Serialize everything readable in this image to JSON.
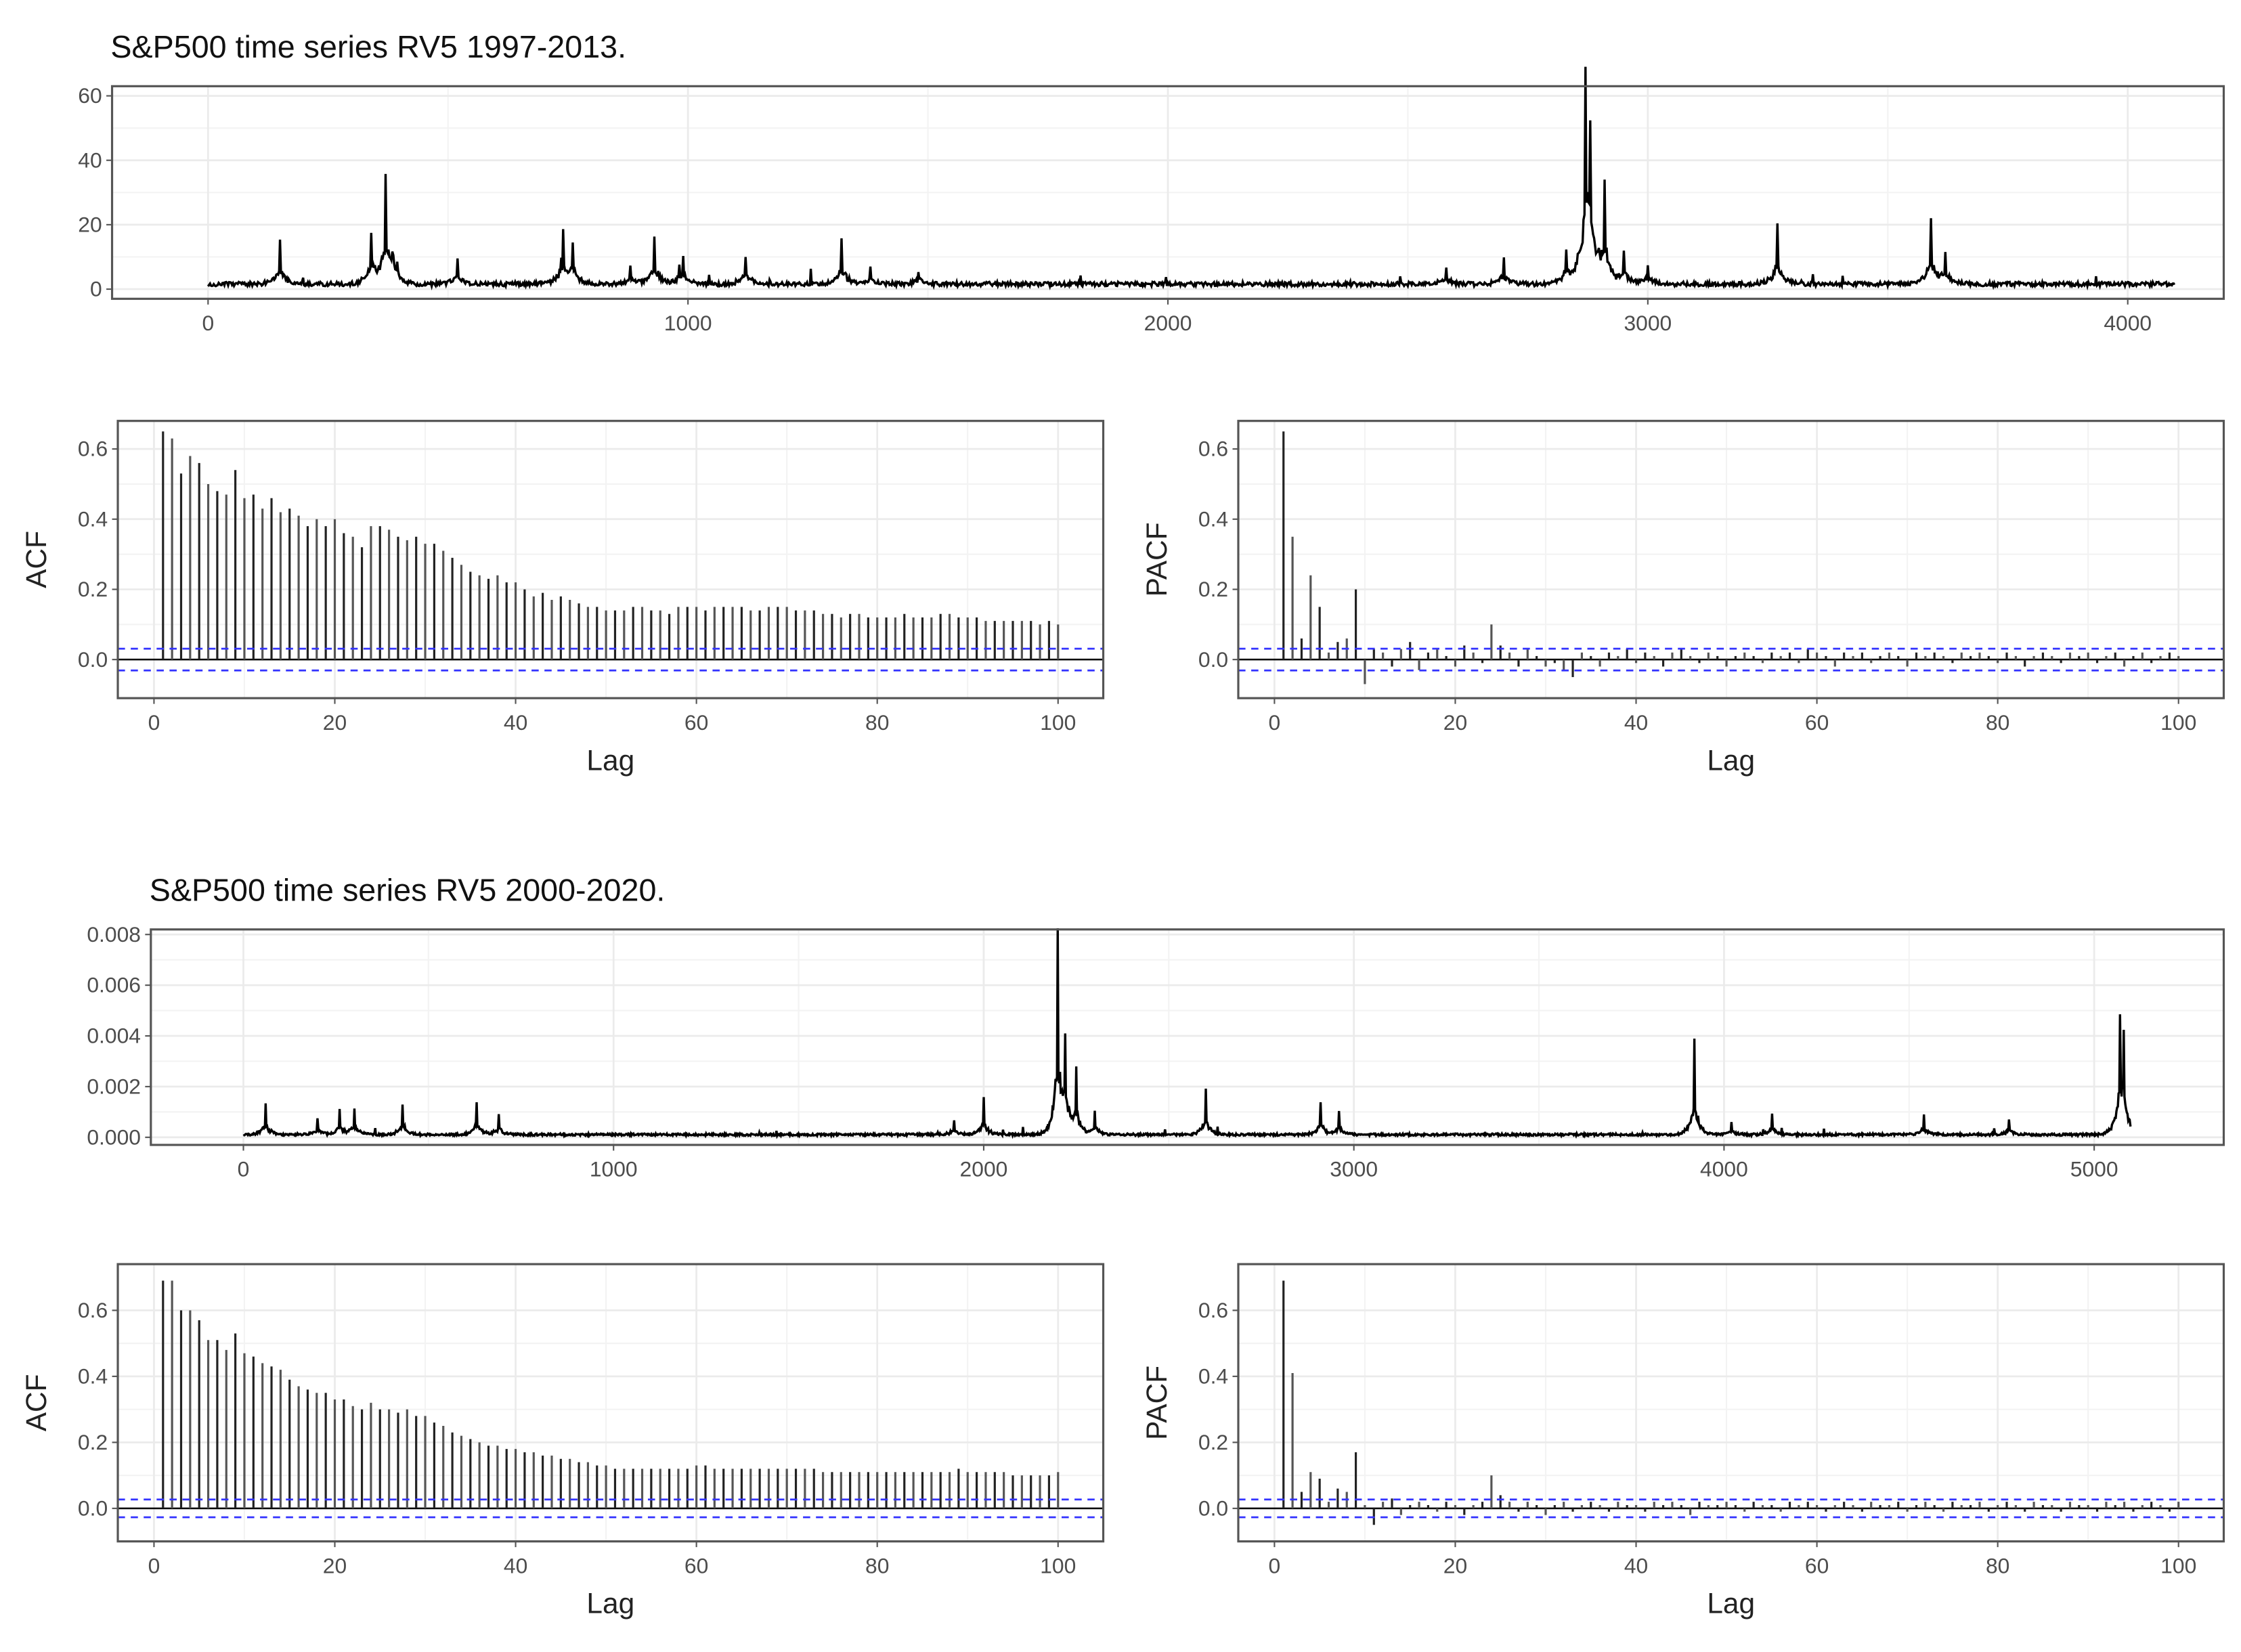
{
  "chart_data": [
    {
      "id": "ts1",
      "type": "line",
      "title": "S&P500 time series RV5 1997-2013.",
      "xlim": [
        -200,
        4200
      ],
      "ylim": [
        -3,
        63
      ],
      "xticks": [
        0,
        1000,
        2000,
        3000,
        4000
      ],
      "yticks": [
        0,
        20,
        40,
        60
      ],
      "ytick_labels": [
        "0",
        "20",
        "40",
        "60"
      ],
      "n": 4100,
      "baseline": 1.5,
      "spikes": [
        [
          150,
          14
        ],
        [
          340,
          15
        ],
        [
          370,
          33
        ],
        [
          385,
          12
        ],
        [
          520,
          8
        ],
        [
          740,
          16
        ],
        [
          760,
          12
        ],
        [
          880,
          5
        ],
        [
          930,
          15
        ],
        [
          990,
          9
        ],
        [
          1120,
          9
        ],
        [
          1320,
          14
        ],
        [
          1380,
          6
        ],
        [
          1480,
          4
        ],
        [
          2580,
          5
        ],
        [
          2700,
          8
        ],
        [
          2830,
          10
        ],
        [
          2870,
          61
        ],
        [
          2880,
          39
        ],
        [
          2910,
          31
        ],
        [
          2950,
          10
        ],
        [
          3000,
          6
        ],
        [
          3270,
          19
        ],
        [
          3590,
          20
        ],
        [
          3620,
          9
        ]
      ]
    },
    {
      "id": "acf1",
      "type": "bar",
      "xlabel": "Lag",
      "ylabel": "ACF",
      "xlim": [
        -4,
        105
      ],
      "ylim": [
        -0.11,
        0.68
      ],
      "xticks": [
        0,
        20,
        40,
        60,
        80,
        100
      ],
      "yticks": [
        0,
        0.2,
        0.4,
        0.6
      ],
      "ytick_labels": [
        "0.0",
        "0.2",
        "0.4",
        "0.6"
      ],
      "ci": 0.031,
      "values": [
        0.65,
        0.63,
        0.53,
        0.58,
        0.56,
        0.5,
        0.48,
        0.47,
        0.54,
        0.46,
        0.47,
        0.43,
        0.46,
        0.42,
        0.43,
        0.41,
        0.38,
        0.4,
        0.38,
        0.4,
        0.36,
        0.35,
        0.32,
        0.38,
        0.38,
        0.37,
        0.35,
        0.34,
        0.35,
        0.33,
        0.33,
        0.31,
        0.29,
        0.27,
        0.25,
        0.24,
        0.23,
        0.24,
        0.22,
        0.22,
        0.2,
        0.18,
        0.19,
        0.17,
        0.18,
        0.17,
        0.16,
        0.15,
        0.15,
        0.14,
        0.14,
        0.14,
        0.15,
        0.15,
        0.14,
        0.14,
        0.13,
        0.15,
        0.15,
        0.15,
        0.14,
        0.15,
        0.15,
        0.15,
        0.15,
        0.14,
        0.14,
        0.15,
        0.15,
        0.15,
        0.14,
        0.14,
        0.14,
        0.13,
        0.13,
        0.12,
        0.13,
        0.13,
        0.12,
        0.12,
        0.12,
        0.12,
        0.13,
        0.12,
        0.12,
        0.12,
        0.13,
        0.13,
        0.12,
        0.12,
        0.12,
        0.11,
        0.11,
        0.11,
        0.11,
        0.11,
        0.11,
        0.1,
        0.11,
        0.1
      ]
    },
    {
      "id": "pacf1",
      "type": "bar",
      "xlabel": "Lag",
      "ylabel": "PACF",
      "xlim": [
        -4,
        105
      ],
      "ylim": [
        -0.11,
        0.68
      ],
      "xticks": [
        0,
        20,
        40,
        60,
        80,
        100
      ],
      "yticks": [
        0,
        0.2,
        0.4,
        0.6
      ],
      "ytick_labels": [
        "0.0",
        "0.2",
        "0.4",
        "0.6"
      ],
      "ci": 0.031,
      "values": [
        0.65,
        0.35,
        0.06,
        0.24,
        0.15,
        0.02,
        0.05,
        0.06,
        0.2,
        -0.07,
        0.03,
        0.02,
        -0.02,
        0.03,
        0.05,
        -0.03,
        0.02,
        0.03,
        0.01,
        -0.02,
        0.04,
        0.02,
        -0.01,
        0.1,
        0.04,
        0.02,
        -0.02,
        0.03,
        0.01,
        -0.02,
        -0.01,
        -0.03,
        -0.05,
        0.02,
        0.01,
        -0.02,
        0.02,
        0.01,
        0.03,
        -0.01,
        0.02,
        0.01,
        -0.02,
        0.02,
        0.03,
        0.01,
        -0.01,
        0.02,
        0.01,
        -0.02,
        0.01,
        0.02,
        0.01,
        -0.01,
        0.02,
        0.01,
        0.02,
        -0.01,
        0.03,
        0.02,
        0.01,
        -0.02,
        0.02,
        0.01,
        0.02,
        -0.01,
        0.01,
        0.02,
        0.01,
        -0.02,
        0.02,
        0.01,
        0.02,
        0.01,
        -0.01,
        0.02,
        0.01,
        0.02,
        0.01,
        -0.01,
        0.02,
        0.01,
        -0.02,
        0.01,
        0.02,
        0.01,
        -0.01,
        0.02,
        0.01,
        0.02,
        -0.01,
        0.01,
        0.02,
        -0.02,
        0.01,
        0.02,
        -0.01,
        0.01,
        0.02,
        0.01
      ]
    },
    {
      "id": "ts2",
      "type": "line",
      "title": "S&P500 time series RV5 2000-2020.",
      "xlim": [
        -250,
        5350
      ],
      "ylim": [
        -0.0003,
        0.0082
      ],
      "xticks": [
        0,
        1000,
        2000,
        3000,
        4000,
        5000
      ],
      "yticks": [
        0,
        0.002,
        0.004,
        0.006,
        0.008
      ],
      "ytick_labels": [
        "0.000",
        "0.002",
        "0.004",
        "0.006",
        "0.008"
      ],
      "n": 5100,
      "baseline": 0.0001,
      "spikes": [
        [
          60,
          0.0012
        ],
        [
          200,
          0.0006
        ],
        [
          260,
          0.001
        ],
        [
          300,
          0.001
        ],
        [
          430,
          0.0012
        ],
        [
          630,
          0.0013
        ],
        [
          690,
          0.0008
        ],
        [
          1920,
          0.0006
        ],
        [
          2000,
          0.0015
        ],
        [
          2200,
          0.0079
        ],
        [
          2220,
          0.0035
        ],
        [
          2250,
          0.0025
        ],
        [
          2300,
          0.0009
        ],
        [
          2600,
          0.0018
        ],
        [
          2910,
          0.0013
        ],
        [
          2960,
          0.0009
        ],
        [
          3920,
          0.0038
        ],
        [
          4020,
          0.0005
        ],
        [
          4130,
          0.0008
        ],
        [
          4540,
          0.0008
        ],
        [
          4770,
          0.0006
        ],
        [
          5070,
          0.0042
        ],
        [
          5080,
          0.0035
        ]
      ]
    },
    {
      "id": "acf2",
      "type": "bar",
      "xlabel": "Lag",
      "ylabel": "ACF",
      "xlim": [
        -4,
        105
      ],
      "ylim": [
        -0.1,
        0.74
      ],
      "xticks": [
        0,
        20,
        40,
        60,
        80,
        100
      ],
      "yticks": [
        0,
        0.2,
        0.4,
        0.6
      ],
      "ytick_labels": [
        "0.0",
        "0.2",
        "0.4",
        "0.6"
      ],
      "ci": 0.027,
      "values": [
        0.69,
        0.69,
        0.6,
        0.6,
        0.57,
        0.51,
        0.51,
        0.48,
        0.53,
        0.47,
        0.46,
        0.44,
        0.43,
        0.42,
        0.39,
        0.37,
        0.36,
        0.35,
        0.35,
        0.33,
        0.33,
        0.31,
        0.3,
        0.32,
        0.3,
        0.3,
        0.29,
        0.3,
        0.28,
        0.28,
        0.26,
        0.25,
        0.23,
        0.22,
        0.21,
        0.2,
        0.19,
        0.19,
        0.18,
        0.18,
        0.17,
        0.17,
        0.16,
        0.16,
        0.15,
        0.15,
        0.14,
        0.14,
        0.13,
        0.13,
        0.12,
        0.12,
        0.12,
        0.12,
        0.12,
        0.12,
        0.12,
        0.12,
        0.12,
        0.13,
        0.13,
        0.12,
        0.12,
        0.12,
        0.12,
        0.12,
        0.12,
        0.12,
        0.12,
        0.12,
        0.12,
        0.12,
        0.12,
        0.11,
        0.11,
        0.11,
        0.11,
        0.11,
        0.11,
        0.11,
        0.11,
        0.11,
        0.11,
        0.11,
        0.11,
        0.11,
        0.11,
        0.11,
        0.12,
        0.11,
        0.11,
        0.11,
        0.11,
        0.11,
        0.1,
        0.1,
        0.1,
        0.1,
        0.1,
        0.11
      ]
    },
    {
      "id": "pacf2",
      "type": "bar",
      "xlabel": "Lag",
      "ylabel": "PACF",
      "xlim": [
        -4,
        105
      ],
      "ylim": [
        -0.1,
        0.74
      ],
      "xticks": [
        0,
        20,
        40,
        60,
        80,
        100
      ],
      "yticks": [
        0,
        0.2,
        0.4,
        0.6
      ],
      "ytick_labels": [
        "0.0",
        "0.2",
        "0.4",
        "0.6"
      ],
      "ci": 0.027,
      "values": [
        0.69,
        0.41,
        0.05,
        0.11,
        0.09,
        0.02,
        0.06,
        0.05,
        0.17,
        0.01,
        -0.05,
        0.02,
        0.03,
        -0.02,
        0.01,
        0.02,
        0.01,
        -0.01,
        0.02,
        0.01,
        -0.02,
        0.01,
        0.02,
        0.1,
        0.04,
        0.02,
        -0.01,
        0.02,
        0.01,
        -0.02,
        0.01,
        0.02,
        -0.01,
        0.01,
        0.02,
        0.01,
        -0.01,
        0.02,
        0.01,
        0.01,
        -0.01,
        0.02,
        0.01,
        0.02,
        0.01,
        -0.02,
        0.02,
        0.01,
        0.01,
        0.02,
        0.01,
        -0.01,
        0.02,
        0.01,
        0.01,
        -0.01,
        0.02,
        0.01,
        0.02,
        0.01,
        -0.01,
        0.01,
        0.02,
        0.01,
        -0.01,
        0.02,
        0.01,
        0.01,
        0.02,
        -0.01,
        0.01,
        0.02,
        0.01,
        -0.01,
        0.02,
        0.01,
        0.01,
        0.02,
        -0.01,
        0.01,
        0.02,
        0.01,
        -0.01,
        0.02,
        0.01,
        0.01,
        -0.01,
        0.02,
        0.01,
        0.01,
        -0.01,
        0.02,
        0.01,
        0.02,
        -0.01,
        0.01,
        0.02,
        0.01,
        -0.01,
        0.02
      ]
    }
  ]
}
